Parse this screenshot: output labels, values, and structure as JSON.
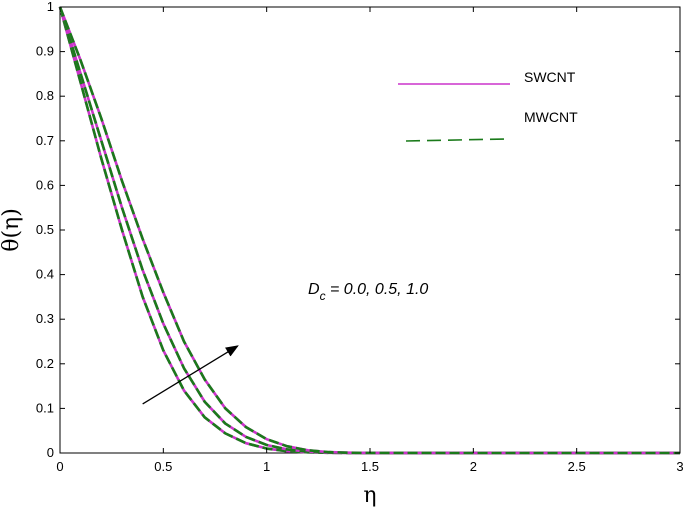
{
  "chart_data": {
    "type": "line",
    "xlabel": "η",
    "ylabel": "θ(η)",
    "xlim": [
      0,
      3
    ],
    "ylim": [
      0,
      1
    ],
    "xticks": [
      "0",
      "0.5",
      "1",
      "1.5",
      "2",
      "2.5",
      "3"
    ],
    "yticks": [
      "0",
      "0.1",
      "0.2",
      "0.3",
      "0.4",
      "0.5",
      "0.6",
      "0.7",
      "0.8",
      "0.9",
      "1"
    ],
    "legend_position": "top-right",
    "grid": false,
    "legend": [
      {
        "name": "SWCNT",
        "color": "#cc33cc",
        "style": "solid"
      },
      {
        "name": "MWCNT",
        "color": "#1a7a1a",
        "style": "dashed"
      }
    ],
    "annotation": {
      "symbol": "D",
      "subscript": "c",
      "values_text": " = 0.0, 0.5, 1.0",
      "arrow_from": [
        0.4,
        0.11
      ],
      "arrow_to": [
        0.86,
        0.24
      ]
    },
    "series": [
      {
        "x": [
          0,
          0.1,
          0.2,
          0.3,
          0.4,
          0.5,
          0.6,
          0.7,
          0.8,
          0.9,
          1.0,
          1.1,
          1.2,
          1.3,
          1.4,
          1.5,
          2.0,
          2.5,
          3.0
        ],
        "values": [
          1.0,
          0.83,
          0.66,
          0.5,
          0.35,
          0.23,
          0.14,
          0.08,
          0.044,
          0.022,
          0.01,
          0.004,
          0.0015,
          0.0005,
          0.0001,
          0.0,
          0.0,
          0.0,
          0.0
        ]
      },
      {
        "x": [
          0,
          0.1,
          0.2,
          0.3,
          0.4,
          0.5,
          0.6,
          0.7,
          0.8,
          0.9,
          1.0,
          1.1,
          1.2,
          1.3,
          1.4,
          1.5,
          2.0,
          2.5,
          3.0
        ],
        "values": [
          1.0,
          0.85,
          0.7,
          0.55,
          0.41,
          0.29,
          0.19,
          0.115,
          0.066,
          0.036,
          0.018,
          0.008,
          0.003,
          0.001,
          0.0003,
          0.0,
          0.0,
          0.0,
          0.0
        ]
      },
      {
        "x": [
          0,
          0.1,
          0.2,
          0.3,
          0.4,
          0.5,
          0.6,
          0.7,
          0.8,
          0.9,
          1.0,
          1.1,
          1.2,
          1.3,
          1.4,
          1.5,
          2.0,
          2.5,
          3.0
        ],
        "values": [
          1.0,
          0.88,
          0.75,
          0.61,
          0.48,
          0.36,
          0.25,
          0.165,
          0.1,
          0.058,
          0.031,
          0.015,
          0.006,
          0.002,
          0.0006,
          0.0001,
          0.0,
          0.0,
          0.0
        ]
      }
    ]
  }
}
